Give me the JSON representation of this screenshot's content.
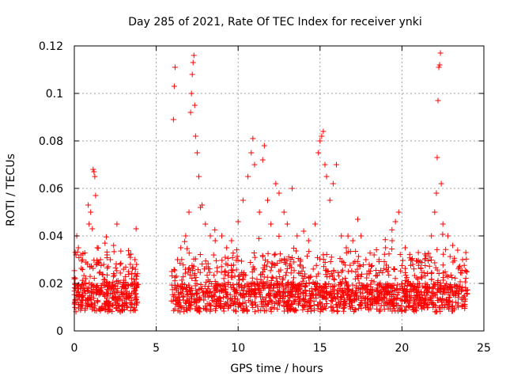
{
  "chart_data": {
    "type": "scatter",
    "title": "Day 285 of 2021, Rate Of TEC Index for receiver ynki",
    "xlabel": "GPS time / hours",
    "ylabel": "ROTI / TECUs",
    "xlim": [
      0,
      25
    ],
    "ylim": [
      0,
      0.12
    ],
    "x_ticks": [
      "0",
      "5",
      "10",
      "15",
      "20",
      "25"
    ],
    "y_ticks": [
      "0",
      "0.02",
      "0.04",
      "0.06",
      "0.08",
      "0.1",
      "0.12"
    ],
    "grid": true,
    "marker": "plus",
    "color": "#ff0000",
    "data_gap_hours": [
      3.9,
      5.9
    ],
    "points": [
      [
        0.1,
        0.032
      ],
      [
        0.15,
        0.04
      ],
      [
        0.25,
        0.035
      ],
      [
        0.5,
        0.03
      ],
      [
        0.7,
        0.022
      ],
      [
        0.85,
        0.053
      ],
      [
        0.9,
        0.045
      ],
      [
        1.0,
        0.05
      ],
      [
        1.1,
        0.043
      ],
      [
        1.15,
        0.068
      ],
      [
        1.2,
        0.067
      ],
      [
        1.25,
        0.065
      ],
      [
        1.3,
        0.057
      ],
      [
        1.4,
        0.035
      ],
      [
        1.6,
        0.03
      ],
      [
        1.8,
        0.028
      ],
      [
        2.0,
        0.032
      ],
      [
        2.2,
        0.03
      ],
      [
        2.4,
        0.036
      ],
      [
        2.6,
        0.045
      ],
      [
        2.8,
        0.028
      ],
      [
        3.0,
        0.026
      ],
      [
        3.3,
        0.025
      ],
      [
        3.5,
        0.022
      ],
      [
        3.7,
        0.03
      ],
      [
        3.8,
        0.028
      ],
      [
        5.95,
        0.025
      ],
      [
        6.05,
        0.089
      ],
      [
        6.1,
        0.103
      ],
      [
        6.15,
        0.111
      ],
      [
        6.3,
        0.03
      ],
      [
        6.5,
        0.035
      ],
      [
        6.8,
        0.04
      ],
      [
        7.0,
        0.05
      ],
      [
        7.1,
        0.092
      ],
      [
        7.15,
        0.1
      ],
      [
        7.2,
        0.108
      ],
      [
        7.25,
        0.113
      ],
      [
        7.3,
        0.116
      ],
      [
        7.35,
        0.095
      ],
      [
        7.4,
        0.082
      ],
      [
        7.5,
        0.075
      ],
      [
        7.6,
        0.065
      ],
      [
        7.7,
        0.052
      ],
      [
        7.8,
        0.053
      ],
      [
        8.0,
        0.045
      ],
      [
        8.3,
        0.04
      ],
      [
        8.6,
        0.038
      ],
      [
        9.0,
        0.04
      ],
      [
        9.3,
        0.035
      ],
      [
        9.6,
        0.038
      ],
      [
        10.0,
        0.046
      ],
      [
        10.3,
        0.055
      ],
      [
        10.6,
        0.065
      ],
      [
        10.8,
        0.075
      ],
      [
        10.9,
        0.081
      ],
      [
        11.0,
        0.07
      ],
      [
        11.3,
        0.05
      ],
      [
        11.5,
        0.072
      ],
      [
        11.6,
        0.078
      ],
      [
        11.8,
        0.055
      ],
      [
        12.0,
        0.045
      ],
      [
        12.3,
        0.062
      ],
      [
        12.5,
        0.058
      ],
      [
        12.8,
        0.05
      ],
      [
        13.0,
        0.045
      ],
      [
        13.3,
        0.06
      ],
      [
        13.6,
        0.04
      ],
      [
        14.0,
        0.042
      ],
      [
        14.3,
        0.038
      ],
      [
        14.7,
        0.045
      ],
      [
        14.9,
        0.075
      ],
      [
        15.0,
        0.08
      ],
      [
        15.1,
        0.082
      ],
      [
        15.2,
        0.084
      ],
      [
        15.3,
        0.07
      ],
      [
        15.4,
        0.065
      ],
      [
        15.6,
        0.055
      ],
      [
        15.8,
        0.062
      ],
      [
        16.0,
        0.07
      ],
      [
        16.3,
        0.04
      ],
      [
        16.6,
        0.035
      ],
      [
        17.0,
        0.038
      ],
      [
        17.3,
        0.047
      ],
      [
        17.5,
        0.04
      ],
      [
        17.8,
        0.03
      ],
      [
        18.0,
        0.028
      ],
      [
        18.3,
        0.032
      ],
      [
        18.6,
        0.03
      ],
      [
        19.0,
        0.035
      ],
      [
        19.4,
        0.038
      ],
      [
        19.6,
        0.046
      ],
      [
        19.8,
        0.05
      ],
      [
        20.2,
        0.035
      ],
      [
        20.6,
        0.03
      ],
      [
        21.0,
        0.033
      ],
      [
        21.4,
        0.03
      ],
      [
        21.8,
        0.04
      ],
      [
        22.0,
        0.05
      ],
      [
        22.1,
        0.058
      ],
      [
        22.15,
        0.073
      ],
      [
        22.2,
        0.097
      ],
      [
        22.25,
        0.111
      ],
      [
        22.3,
        0.112
      ],
      [
        22.35,
        0.117
      ],
      [
        22.4,
        0.062
      ],
      [
        22.5,
        0.045
      ],
      [
        22.8,
        0.04
      ],
      [
        23.1,
        0.036
      ],
      [
        23.4,
        0.034
      ],
      [
        23.7,
        0.03
      ],
      [
        23.9,
        0.033
      ]
    ]
  }
}
